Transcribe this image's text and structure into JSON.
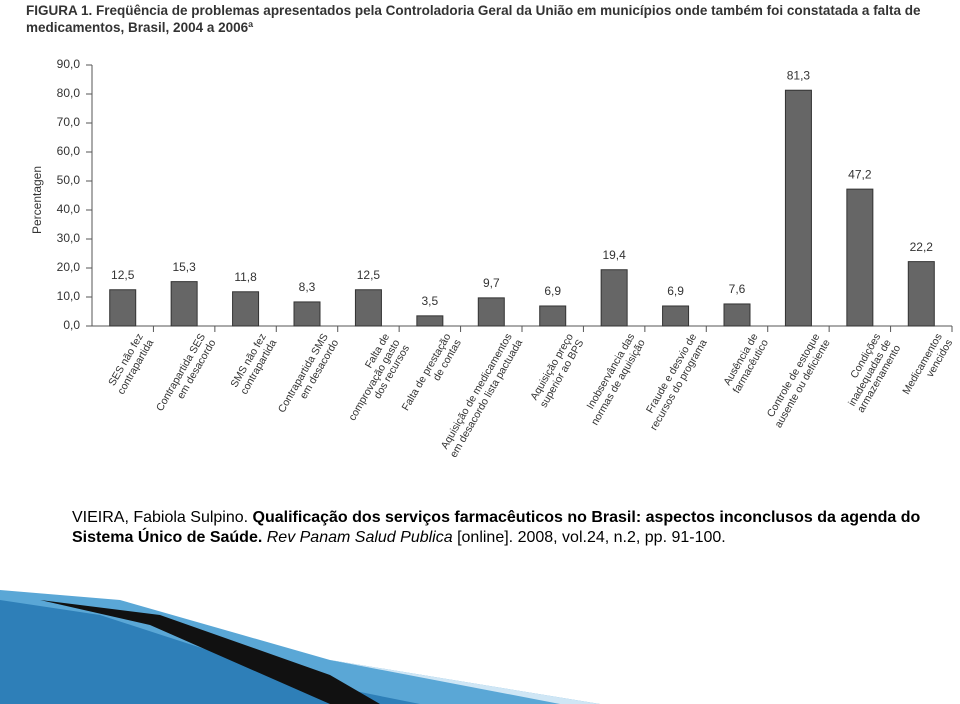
{
  "chart_data": {
    "type": "bar",
    "title": "FIGURA 1. Freqüência de problemas apresentados pela Controladoria Geral da União em municípios onde também foi constatada a falta de medicamentos, Brasil, 2004 a 2006ª",
    "y_label": "Percentagen",
    "categories": [
      "SES não fez\ncontrapartida",
      "Contrapartida SES\nem desacordo",
      "SMS não fez\ncontrapartida",
      "Contrapartida SMS\nem desacordo",
      "Falta de\ncomprovação gasto\ndos recursos",
      "Falta de prestação\nde contas",
      "Aquisição de medicamentos\nem desacordo lista pactuada",
      "Aquisição preço\nsuperior ao BPS",
      "Inobservância das\nnormas de aquisição",
      "Fraude e desvio de\nrecursos do programa",
      "Ausência de\nfarmacêutico",
      "Controle de estoque\nausente ou deficiente",
      "Condições\ninadequadas de\narmazenamento",
      "Medicamentos\nvencidos"
    ],
    "values": [
      12.5,
      15.3,
      11.8,
      8.3,
      12.5,
      3.5,
      9.7,
      6.9,
      19.4,
      6.9,
      7.6,
      81.3,
      47.2,
      22.2
    ],
    "value_labels": [
      "12,5",
      "15,3",
      "11,8",
      "8,3",
      "12,5",
      "3,5",
      "9,7",
      "6,9",
      "19,4",
      "6,9",
      "7,6",
      "81,3",
      "47,2",
      "22,2"
    ],
    "color": "#666666",
    "ylim": [
      0,
      90
    ],
    "yticks": [
      {
        "value": 0,
        "label": "0,0"
      },
      {
        "value": 10,
        "label": "10,0"
      },
      {
        "value": 20,
        "label": "20,0"
      },
      {
        "value": 30,
        "label": "30,0"
      },
      {
        "value": 40,
        "label": "40,0"
      },
      {
        "value": 50,
        "label": "50,0"
      },
      {
        "value": 60,
        "label": "60,0"
      },
      {
        "value": 70,
        "label": "70,0"
      },
      {
        "value": 80,
        "label": "80,0"
      },
      {
        "value": 90,
        "label": "90,0"
      }
    ]
  },
  "citation": {
    "author": "VIEIRA, Fabiola Sulpino.",
    "title": "Qualificação dos serviços farmacêuticos no Brasil: aspectos inconclusos da agenda do Sistema Único de Saúde.",
    "journal": "Rev Panam Salud Publica",
    "rest": "[online]. 2008, vol.24, n.2, pp. 91-100."
  }
}
